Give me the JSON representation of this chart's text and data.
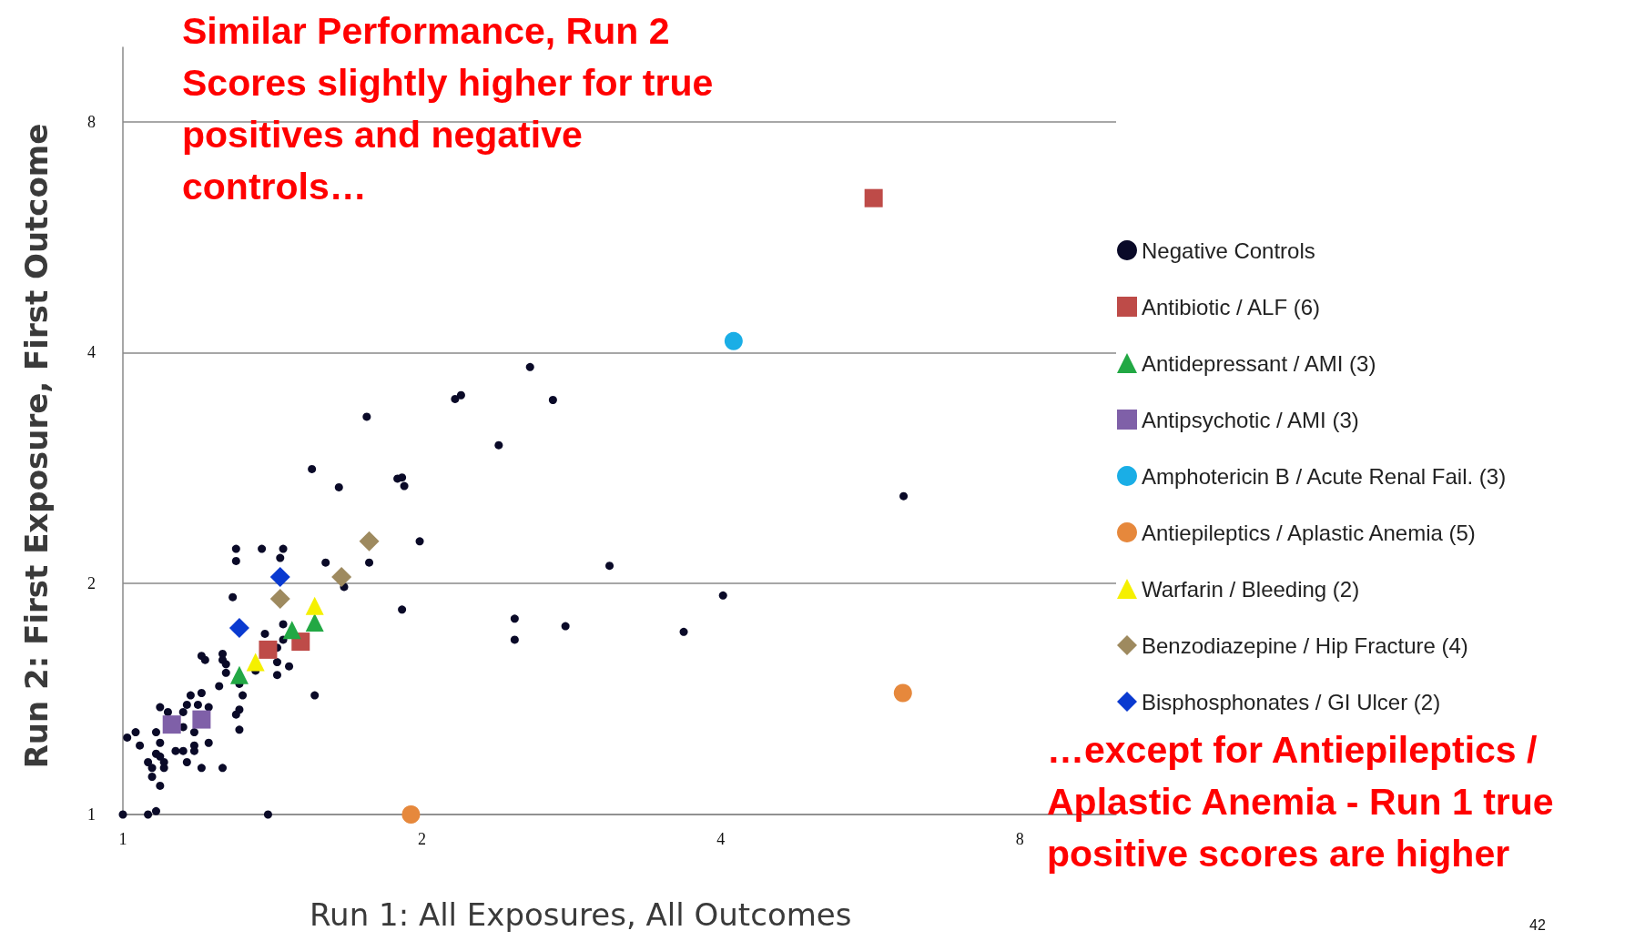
{
  "chart_data": {
    "type": "scatter",
    "xlabel": "Run 1:  All Exposures, All Outcomes",
    "ylabel": "Run 2:  First Exposure, First Outcome",
    "xlim": [
      1,
      10
    ],
    "ylim": [
      1,
      10
    ],
    "xticks": [
      1,
      2,
      4,
      8
    ],
    "yticks": [
      1,
      2,
      4,
      8
    ],
    "log": "xy",
    "grid": "y",
    "legend": "right",
    "annotations": [
      "Similar Performance, Run 2 Scores slightly higher for true positives and negative controls…",
      "…except for Antiepileptics / Aplastic Anemia - Run 1 true positive scores are higher",
      "42"
    ],
    "series": [
      {
        "name": "Negative Controls",
        "color": "#0a0a28",
        "marker": "circle",
        "x": [
          1.3,
          1.38,
          1.45,
          1.3,
          1.44,
          1.6,
          1.77,
          1.99,
          1.67,
          1.29,
          1.91,
          1.45,
          1.39,
          1.45,
          1.43,
          1.43,
          1.47,
          1.43,
          1.36,
          1.2,
          1.21,
          1.26,
          1.26,
          1.27,
          1.27,
          1.25,
          1.31,
          1.32,
          1.56,
          1.17,
          1.2,
          1.16,
          1.19,
          1.15,
          1.09,
          1.11,
          1.22,
          1.31,
          1.3,
          1.31,
          1.15,
          1.08,
          1.03,
          1.01,
          1.04,
          1.09,
          1.18,
          1.22,
          1.18,
          1.18,
          1.15,
          1.13,
          1.08,
          1.09,
          1.06,
          1.1,
          1.07,
          1.1,
          1.16,
          1.2,
          1.26,
          1.07,
          1.09,
          1.0,
          1.06,
          1.08,
          1.4,
          2.57,
          2.16,
          2.19,
          2.71,
          1.76,
          2.39,
          1.55,
          1.65,
          1.89,
          1.91,
          1.92,
          3.09,
          6.11,
          4.02,
          2.48,
          2.48,
          2.79,
          3.67
        ],
        "values": [
          2.22,
          2.22,
          2.22,
          2.14,
          2.16,
          2.13,
          2.13,
          2.27,
          1.98,
          1.92,
          1.85,
          1.77,
          1.72,
          1.69,
          1.65,
          1.58,
          1.56,
          1.52,
          1.54,
          1.61,
          1.59,
          1.62,
          1.59,
          1.57,
          1.53,
          1.47,
          1.48,
          1.43,
          1.43,
          1.43,
          1.44,
          1.39,
          1.39,
          1.36,
          1.38,
          1.36,
          1.38,
          1.37,
          1.35,
          1.29,
          1.3,
          1.28,
          1.28,
          1.26,
          1.23,
          1.24,
          1.28,
          1.24,
          1.23,
          1.21,
          1.21,
          1.21,
          1.2,
          1.19,
          1.17,
          1.17,
          1.15,
          1.15,
          1.17,
          1.15,
          1.15,
          1.12,
          1.09,
          1.0,
          1.0,
          1.01,
          1.0,
          3.83,
          3.48,
          3.52,
          3.47,
          3.3,
          3.03,
          2.82,
          2.67,
          2.74,
          2.75,
          2.68,
          2.11,
          2.6,
          1.93,
          1.8,
          1.69,
          1.76,
          1.73
        ]
      },
      {
        "name": "Antibiotic / ALF (6)",
        "color": "#be4b48",
        "marker": "square",
        "x": [
          1.4,
          1.51,
          5.7
        ],
        "values": [
          1.64,
          1.68,
          6.36
        ]
      },
      {
        "name": "Antidepressant / AMI (3)",
        "color": "#22a844",
        "marker": "triangle",
        "x": [
          1.31,
          1.48,
          1.56
        ],
        "values": [
          1.52,
          1.74,
          1.78
        ]
      },
      {
        "name": "Antipsychotic / AMI (3)",
        "color": "#7f60a8",
        "marker": "square",
        "x": [
          1.12,
          1.2
        ],
        "values": [
          1.31,
          1.33
        ]
      },
      {
        "name": "Amphotericin B / Acute Renal Fail. (3)",
        "color": "#1aaee6",
        "marker": "circle",
        "x": [
          4.12
        ],
        "values": [
          4.14
        ]
      },
      {
        "name": "Antiepileptics / Aplastic Anemia (5)",
        "color": "#e6883c",
        "marker": "circle",
        "x": [
          1.95,
          6.1
        ],
        "values": [
          1.0,
          1.44
        ]
      },
      {
        "name": "Warfarin / Bleeding (2)",
        "color": "#f5f000",
        "marker": "triangle",
        "x": [
          1.36,
          1.56
        ],
        "values": [
          1.58,
          1.87
        ]
      },
      {
        "name": "Benzodiazepine / Hip Fracture (4)",
        "color": "#9e8a5f",
        "marker": "diamond",
        "x": [
          1.44,
          1.66,
          1.77
        ],
        "values": [
          1.91,
          2.04,
          2.27
        ]
      },
      {
        "name": "Bisphosphonates / GI Ulcer (2)",
        "color": "#0a3ad0",
        "marker": "diamond",
        "x": [
          1.31,
          1.44
        ],
        "values": [
          1.75,
          2.04
        ]
      }
    ]
  }
}
